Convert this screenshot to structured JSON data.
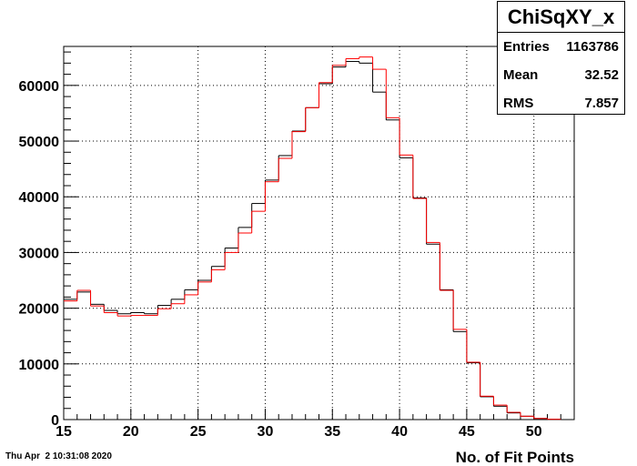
{
  "chart_data": {
    "type": "histogram",
    "title": "",
    "xlabel": "No. of Fit Points",
    "ylabel": "",
    "xlim": [
      15,
      53
    ],
    "ylim": [
      0,
      67000
    ],
    "grid": true,
    "x_ticks": [
      "15",
      "20",
      "25",
      "30",
      "35",
      "40",
      "45",
      "50"
    ],
    "y_ticks": [
      "0",
      "10000",
      "20000",
      "30000",
      "40000",
      "50000",
      "60000"
    ],
    "bin_edges": [
      15,
      16,
      17,
      18,
      19,
      20,
      21,
      22,
      23,
      24,
      25,
      26,
      27,
      28,
      29,
      30,
      31,
      32,
      33,
      34,
      35,
      36,
      37,
      38,
      39,
      40,
      41,
      42,
      43,
      44,
      45,
      46,
      47,
      48,
      49,
      50,
      51,
      52
    ],
    "series": [
      {
        "color": "#000000",
        "values": [
          21600,
          22900,
          20700,
          19600,
          19000,
          19200,
          19000,
          20500,
          21600,
          23300,
          25000,
          27500,
          30800,
          34500,
          38800,
          43000,
          47400,
          51800,
          56000,
          60300,
          63300,
          64300,
          64000,
          58800,
          53800,
          47000,
          39800,
          31500,
          23300,
          15800,
          10200,
          4100,
          2400,
          1200,
          600,
          200,
          50
        ]
      },
      {
        "color": "#ff0000",
        "values": [
          21300,
          23200,
          20400,
          19200,
          18600,
          18700,
          18700,
          19900,
          20800,
          22400,
          24700,
          26900,
          30000,
          33500,
          37400,
          42700,
          46900,
          51700,
          56000,
          60500,
          63600,
          64800,
          65100,
          62900,
          54200,
          47500,
          39700,
          31800,
          23200,
          16200,
          10300,
          4200,
          2600,
          1300,
          600,
          200,
          50
        ]
      }
    ]
  },
  "stats": {
    "title": "ChiSqXY_x",
    "entries_label": "Entries",
    "entries_value": "1163786",
    "mean_label": "Mean",
    "mean_value": "32.52",
    "rms_label": "RMS",
    "rms_value": "7.857"
  },
  "footer": {
    "timestamp": "Thu Apr  2 10:31:08 2020"
  }
}
